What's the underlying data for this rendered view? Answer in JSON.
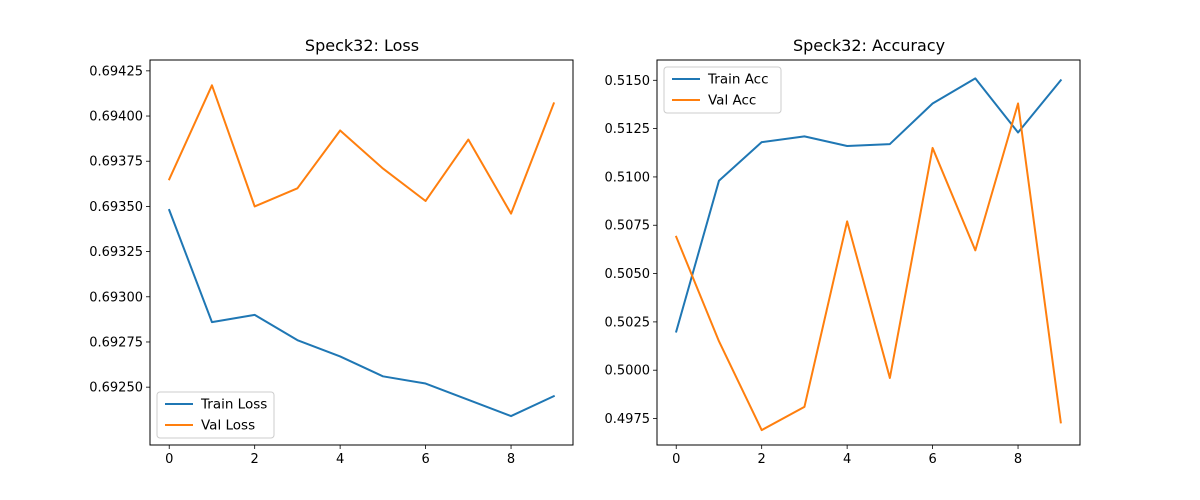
{
  "chart_data": [
    {
      "type": "line",
      "title": "Speck32: Loss",
      "x": [
        0,
        1,
        2,
        3,
        4,
        5,
        6,
        7,
        8,
        9
      ],
      "xlim": [
        -0.45,
        9.45
      ],
      "ylim": [
        0.69218,
        0.69431
      ],
      "xticks": [
        0,
        2,
        4,
        6,
        8
      ],
      "yticks": [
        0.6925,
        0.69275,
        0.693,
        0.69325,
        0.6935,
        0.69375,
        0.694,
        0.69425
      ],
      "ytick_labels": [
        "0.69250",
        "0.69275",
        "0.69300",
        "0.69325",
        "0.69350",
        "0.69375",
        "0.69400",
        "0.69425"
      ],
      "legend_position": "lower-left",
      "series": [
        {
          "name": "Train Loss",
          "color": "#1f77b4",
          "values": [
            0.69348,
            0.69286,
            0.6929,
            0.69276,
            0.69267,
            0.69256,
            0.69252,
            0.69243,
            0.69234,
            0.69245
          ]
        },
        {
          "name": "Val Loss",
          "color": "#ff7f0e",
          "values": [
            0.69365,
            0.69417,
            0.6935,
            0.6936,
            0.69392,
            0.69371,
            0.69353,
            0.69387,
            0.69346,
            0.69407
          ]
        }
      ]
    },
    {
      "type": "line",
      "title": "Speck32: Accuracy",
      "x": [
        0,
        1,
        2,
        3,
        4,
        5,
        6,
        7,
        8,
        9
      ],
      "xlim": [
        -0.45,
        9.45
      ],
      "ylim": [
        0.49613,
        0.51605
      ],
      "xticks": [
        0,
        2,
        4,
        6,
        8
      ],
      "yticks": [
        0.4975,
        0.5,
        0.5025,
        0.505,
        0.5075,
        0.51,
        0.5125,
        0.515
      ],
      "ytick_labels": [
        "0.4975",
        "0.5000",
        "0.5025",
        "0.5050",
        "0.5075",
        "0.5100",
        "0.5125",
        "0.5150"
      ],
      "legend_position": "upper-left",
      "series": [
        {
          "name": "Train Acc",
          "color": "#1f77b4",
          "values": [
            0.502,
            0.5098,
            0.5118,
            0.5121,
            0.5116,
            0.5117,
            0.5138,
            0.5151,
            0.5123,
            0.515
          ]
        },
        {
          "name": "Val Acc",
          "color": "#ff7f0e",
          "values": [
            0.5069,
            0.5015,
            0.4969,
            0.4981,
            0.5077,
            0.4996,
            0.5115,
            0.5062,
            0.5138,
            0.4973
          ]
        }
      ]
    }
  ]
}
